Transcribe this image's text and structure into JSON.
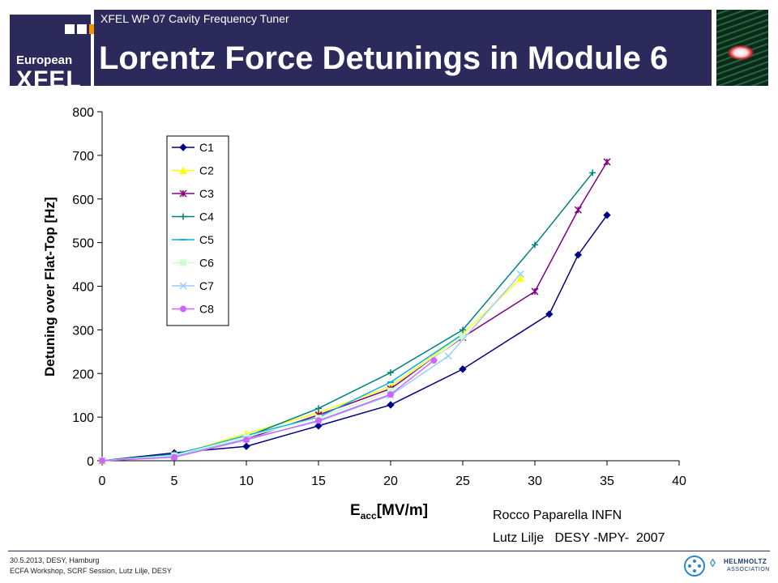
{
  "header": {
    "logo_line1": "European",
    "logo_line2": "XFEL",
    "subtitle": "XFEL WP 07 Cavity Frequency Tuner",
    "title": "Lorentz Force Detunings in Module 6"
  },
  "chart_data": {
    "type": "line",
    "title": "",
    "ylabel": "Detuning over Flat-Top [Hz]",
    "xlabel_main": "E",
    "xlabel_sub": "acc",
    "xlabel_unit": "[MV/m]",
    "xlim": [
      0,
      40
    ],
    "ylim": [
      0,
      800
    ],
    "xticks": [
      0,
      5,
      10,
      15,
      20,
      25,
      30,
      35,
      40
    ],
    "yticks": [
      0,
      100,
      200,
      300,
      400,
      500,
      600,
      700,
      800
    ],
    "grid": false,
    "legend_position": "top-left",
    "series": [
      {
        "name": "C1",
        "color": "#000080",
        "marker": "diamond",
        "x": [
          0,
          5,
          10,
          15,
          20,
          25,
          31,
          33,
          35
        ],
        "y": [
          0,
          18,
          33,
          80,
          128,
          210,
          336,
          472,
          563
        ]
      },
      {
        "name": "C2",
        "color": "#ffff00",
        "marker": "triangle",
        "x": [
          0,
          5,
          10,
          15,
          20,
          25,
          29
        ],
        "y": [
          0,
          12,
          62,
          110,
          170,
          290,
          418
        ]
      },
      {
        "name": "C3",
        "color": "#800080",
        "marker": "star",
        "x": [
          0,
          5,
          10,
          15,
          20,
          25,
          30,
          33,
          35
        ],
        "y": [
          0,
          10,
          50,
          105,
          165,
          283,
          388,
          575,
          685
        ]
      },
      {
        "name": "C4",
        "color": "#008080",
        "marker": "plus",
        "x": [
          0,
          5,
          10,
          15,
          20,
          25,
          30,
          34
        ],
        "y": [
          0,
          15,
          55,
          120,
          202,
          300,
          495,
          660
        ]
      },
      {
        "name": "C5",
        "color": "#00b0f0",
        "marker": "dash",
        "x": [
          0,
          5,
          10,
          15,
          20,
          25
        ],
        "y": [
          0,
          13,
          58,
          100,
          180,
          290
        ]
      },
      {
        "name": "C6",
        "color": "#ccffcc",
        "marker": "square",
        "x": [
          0,
          5,
          10,
          15,
          20,
          25
        ],
        "y": [
          0,
          12,
          55,
          98,
          160,
          285
        ]
      },
      {
        "name": "C7",
        "color": "#99ccff",
        "marker": "x",
        "x": [
          0,
          5,
          10,
          15,
          20,
          24,
          29
        ],
        "y": [
          0,
          10,
          50,
          90,
          150,
          240,
          428
        ]
      },
      {
        "name": "C8",
        "color": "#cc66ff",
        "marker": "circle",
        "x": [
          0,
          5,
          10,
          15,
          20,
          23
        ],
        "y": [
          0,
          8,
          48,
          92,
          152,
          230
        ]
      }
    ]
  },
  "credits": {
    "line1": "Rocco Paparella INFN",
    "line2": "Lutz Lilje   DESY -MPY-  2007"
  },
  "footer": {
    "line1": "30.5.2013, DESY, Hamburg",
    "line2": "ECFA Workshop, SCRF Session, Lutz Lilje, DESY",
    "helmholtz_line1": "HELMHOLTZ",
    "helmholtz_line2": "ASSOCIATION"
  }
}
